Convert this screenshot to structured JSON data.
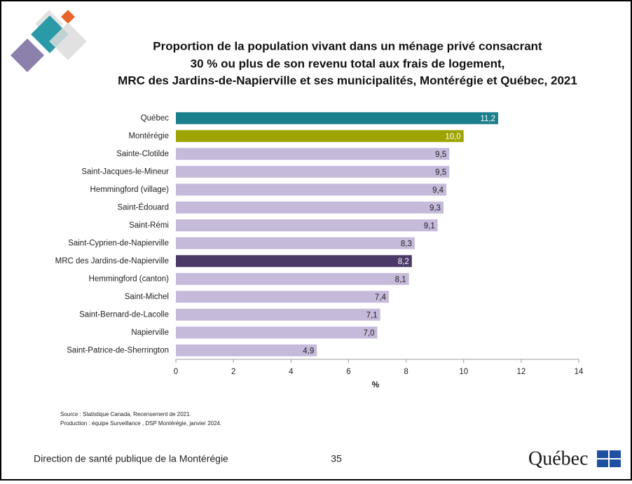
{
  "chart_data": {
    "type": "bar",
    "orientation": "horizontal",
    "title": [
      "Proportion de la population vivant dans un ménage privé consacrant",
      "30 % ou plus de son revenu total aux frais de logement,",
      "MRC des Jardins-de-Napierville et ses municipalités, Montérégie et Québec, 2021"
    ],
    "categories": [
      "Québec",
      "Montérégie",
      "Sainte-Clotilde",
      "Saint-Jacques-le-Mineur",
      "Hemmingford (village)",
      "Saint-Édouard",
      "Saint-Rémi",
      "Saint-Cyprien-de-Napierville",
      "MRC des Jardins-de-Napierville",
      "Hemmingford (canton)",
      "Saint-Michel",
      "Saint-Bernard-de-Lacolle",
      "Napierville",
      "Saint-Patrice-de-Sherrington"
    ],
    "values": [
      11.2,
      10.0,
      9.5,
      9.5,
      9.4,
      9.3,
      9.1,
      8.3,
      8.2,
      8.1,
      7.4,
      7.1,
      7.0,
      4.9
    ],
    "value_labels": [
      "11,2",
      "10,0",
      "9,5",
      "9,5",
      "9,4",
      "9,3",
      "9,1",
      "8,3",
      "8,2",
      "8,1",
      "7,4",
      "7,1",
      "7,0",
      "4,9"
    ],
    "colors": [
      "#1b7f8c",
      "#9ea500",
      "#c6badb",
      "#c6badb",
      "#c6badb",
      "#c6badb",
      "#c6badb",
      "#c6badb",
      "#4b3a68",
      "#c6badb",
      "#c6badb",
      "#c6badb",
      "#c6badb",
      "#c6badb"
    ],
    "xlim": [
      0,
      14
    ],
    "xticks": [
      0,
      2,
      4,
      6,
      8,
      10,
      12,
      14
    ],
    "xlabel": "%",
    "grid": false
  },
  "footer": {
    "source": "Source : Statistique Canada, Recensement de 2021.",
    "production": "Production : équipe Surveillance , DSP Montérégie, janvier 2024.",
    "organization": "Direction de santé publique de la Montérégie",
    "page": "35",
    "logo": "Québec"
  }
}
